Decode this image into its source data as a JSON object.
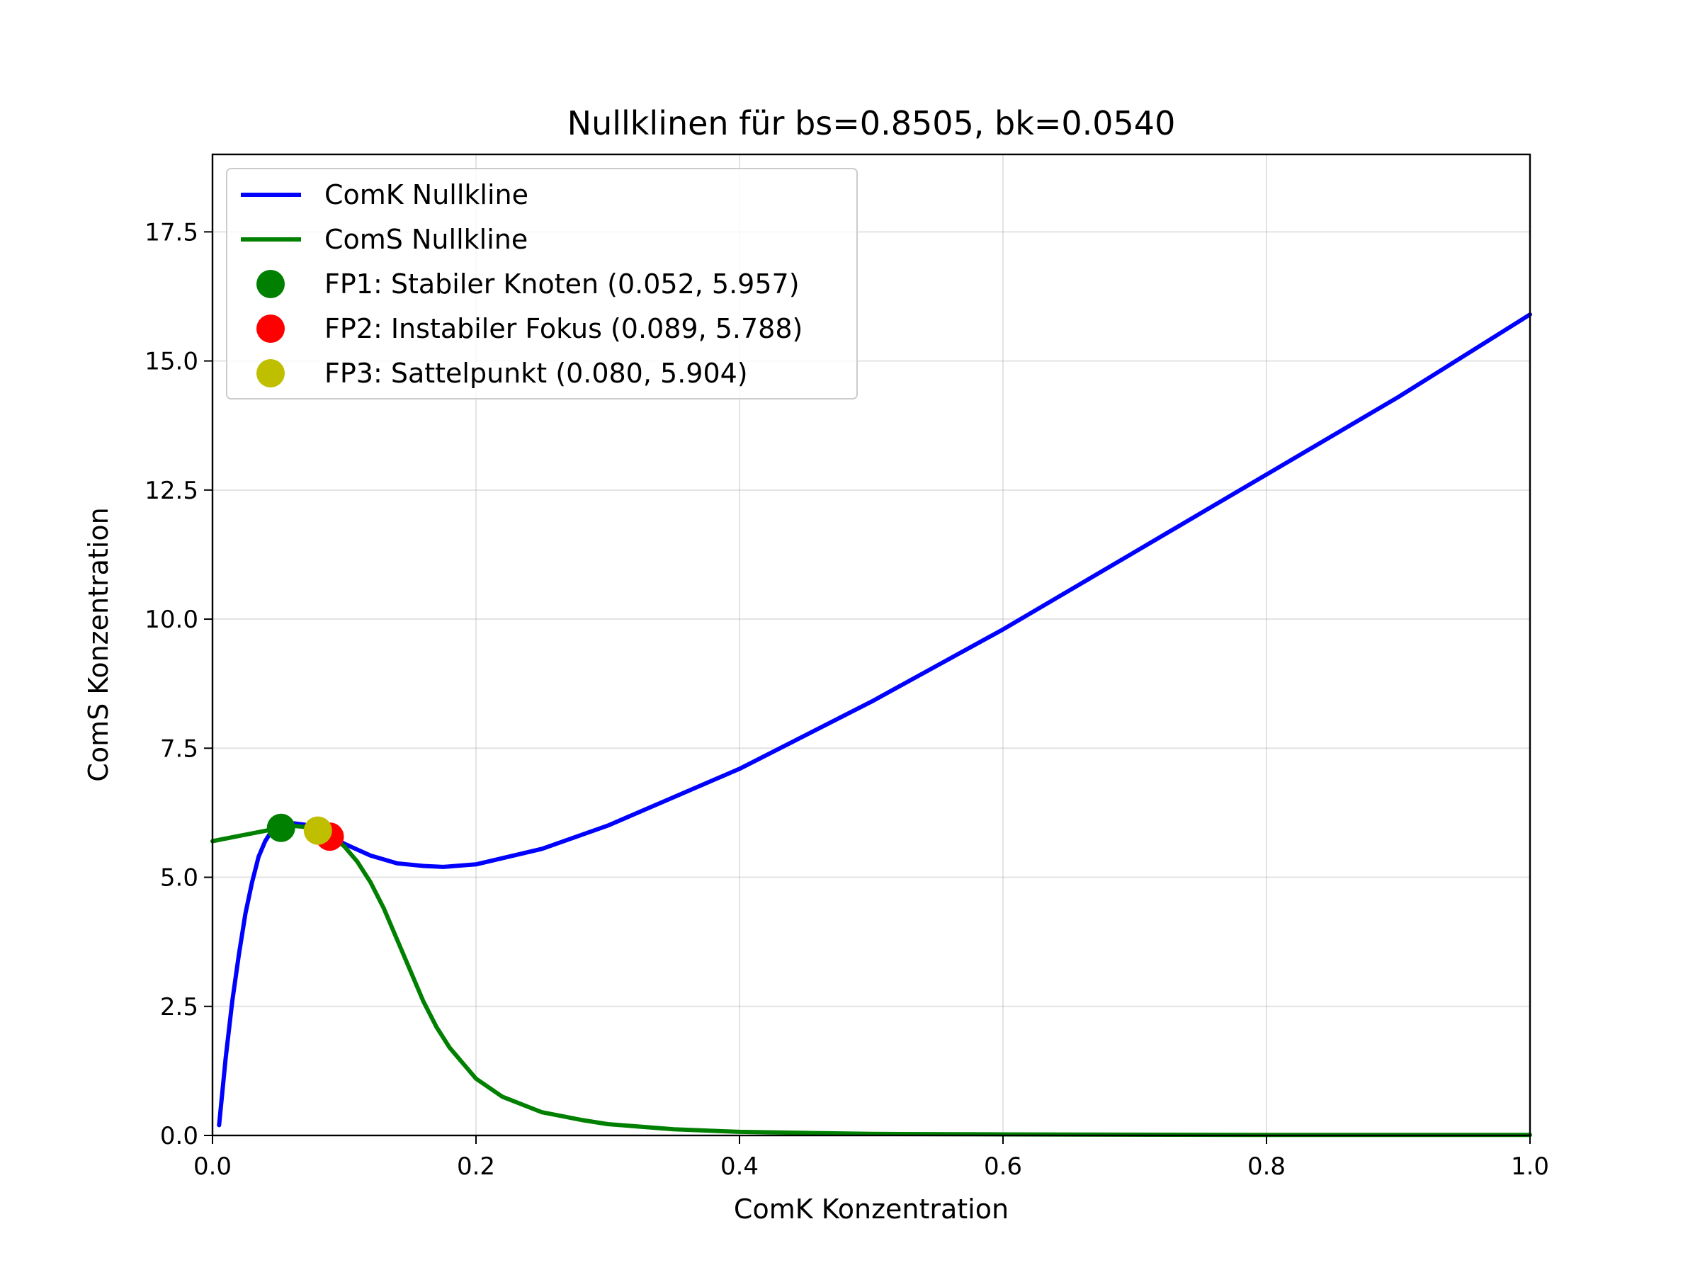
{
  "chart_data": {
    "type": "line",
    "title": "Nullklinen für bs=0.8505, bk=0.0540",
    "xlabel": "ComK Konzentration",
    "ylabel": "ComS Konzentration",
    "xlim": [
      0.0,
      1.0
    ],
    "ylim": [
      0.0,
      19.0
    ],
    "xticks": [
      0.0,
      0.2,
      0.4,
      0.6,
      0.8,
      1.0
    ],
    "xtick_labels": [
      "0.0",
      "0.2",
      "0.4",
      "0.6",
      "0.8",
      "1.0"
    ],
    "yticks": [
      0.0,
      2.5,
      5.0,
      7.5,
      10.0,
      12.5,
      15.0,
      17.5
    ],
    "ytick_labels": [
      "0.0",
      "2.5",
      "5.0",
      "7.5",
      "10.0",
      "12.5",
      "15.0",
      "17.5"
    ],
    "grid": true,
    "legend_position": "top-left",
    "series": [
      {
        "name": "ComK Nullkline",
        "color": "#0000ff",
        "x": [
          0.005,
          0.01,
          0.015,
          0.02,
          0.025,
          0.03,
          0.035,
          0.04,
          0.045,
          0.05,
          0.06,
          0.07,
          0.08,
          0.09,
          0.1,
          0.12,
          0.14,
          0.16,
          0.175,
          0.2,
          0.25,
          0.3,
          0.35,
          0.4,
          0.5,
          0.6,
          0.7,
          0.8,
          0.9,
          1.0
        ],
        "y": [
          0.2,
          1.5,
          2.6,
          3.5,
          4.3,
          4.9,
          5.4,
          5.7,
          5.9,
          6.0,
          6.05,
          6.02,
          5.92,
          5.8,
          5.65,
          5.42,
          5.27,
          5.22,
          5.2,
          5.25,
          5.55,
          6.0,
          6.55,
          7.1,
          8.4,
          9.8,
          11.3,
          12.8,
          14.3,
          15.9
        ]
      },
      {
        "name": "ComS Nullkline",
        "color": "#008000",
        "x": [
          0.0,
          0.02,
          0.04,
          0.06,
          0.08,
          0.09,
          0.1,
          0.11,
          0.12,
          0.13,
          0.14,
          0.15,
          0.16,
          0.17,
          0.18,
          0.2,
          0.22,
          0.25,
          0.28,
          0.3,
          0.35,
          0.4,
          0.5,
          0.6,
          0.8,
          1.0
        ],
        "y": [
          5.7,
          5.8,
          5.9,
          6.0,
          5.95,
          5.8,
          5.6,
          5.3,
          4.9,
          4.4,
          3.8,
          3.2,
          2.6,
          2.1,
          1.7,
          1.1,
          0.75,
          0.45,
          0.3,
          0.22,
          0.12,
          0.07,
          0.03,
          0.02,
          0.01,
          0.01
        ]
      }
    ],
    "fixed_points": [
      {
        "label": "FP1: Stabiler Knoten (0.052, 5.957)",
        "x": 0.052,
        "y": 5.957,
        "color": "#008000"
      },
      {
        "label": "FP2: Instabiler Fokus (0.089, 5.788)",
        "x": 0.089,
        "y": 5.788,
        "color": "#ff0000"
      },
      {
        "label": "FP3: Sattelpunkt (0.080, 5.904)",
        "x": 0.08,
        "y": 5.904,
        "color": "#bfbf00"
      }
    ]
  }
}
